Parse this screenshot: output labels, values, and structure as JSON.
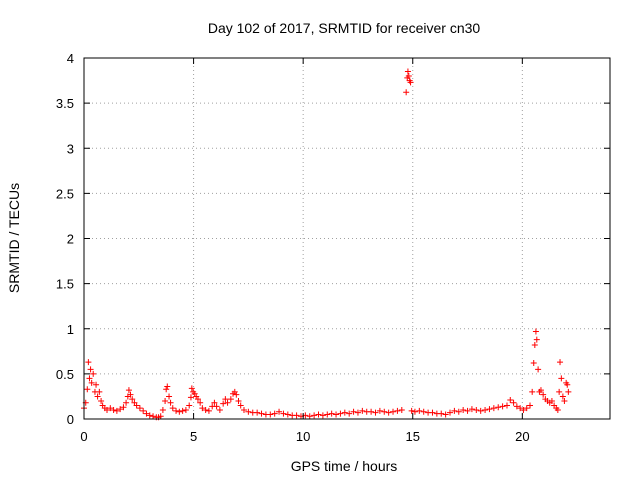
{
  "chart_data": {
    "type": "scatter",
    "title": "Day 102 of 2017, SRMTID for receiver cn30",
    "xlabel": "GPS time / hours",
    "ylabel": "SRMTID / TECUs",
    "xlim": [
      0,
      24
    ],
    "ylim": [
      0,
      4
    ],
    "xticks": [
      0,
      5,
      10,
      15,
      20
    ],
    "yticks": [
      0,
      0.5,
      1,
      1.5,
      2,
      2.5,
      3,
      3.5,
      4
    ],
    "ytick_labels": [
      "0",
      "0.5",
      "1",
      "1.5",
      "2",
      "2.5",
      "3",
      "3.5",
      "4"
    ],
    "grid": true,
    "marker": "+",
    "color": "#ff0000",
    "series": [
      {
        "name": "cn30",
        "points": [
          [
            0.0,
            0.12
          ],
          [
            0.08,
            0.18
          ],
          [
            0.15,
            0.33
          ],
          [
            0.2,
            0.63
          ],
          [
            0.25,
            0.45
          ],
          [
            0.3,
            0.55
          ],
          [
            0.35,
            0.4
          ],
          [
            0.42,
            0.5
          ],
          [
            0.5,
            0.3
          ],
          [
            0.55,
            0.38
          ],
          [
            0.62,
            0.25
          ],
          [
            0.7,
            0.3
          ],
          [
            0.78,
            0.2
          ],
          [
            0.85,
            0.15
          ],
          [
            0.95,
            0.12
          ],
          [
            1.05,
            0.1
          ],
          [
            1.2,
            0.12
          ],
          [
            1.35,
            0.1
          ],
          [
            1.5,
            0.09
          ],
          [
            1.65,
            0.11
          ],
          [
            1.8,
            0.13
          ],
          [
            1.92,
            0.18
          ],
          [
            2.0,
            0.25
          ],
          [
            2.05,
            0.32
          ],
          [
            2.12,
            0.27
          ],
          [
            2.2,
            0.22
          ],
          [
            2.3,
            0.18
          ],
          [
            2.4,
            0.15
          ],
          [
            2.55,
            0.12
          ],
          [
            2.7,
            0.09
          ],
          [
            2.85,
            0.06
          ],
          [
            3.0,
            0.04
          ],
          [
            3.15,
            0.03
          ],
          [
            3.3,
            0.02
          ],
          [
            3.4,
            0.02
          ],
          [
            3.5,
            0.03
          ],
          [
            3.6,
            0.1
          ],
          [
            3.7,
            0.2
          ],
          [
            3.75,
            0.33
          ],
          [
            3.8,
            0.36
          ],
          [
            3.88,
            0.25
          ],
          [
            3.95,
            0.18
          ],
          [
            4.05,
            0.12
          ],
          [
            4.2,
            0.09
          ],
          [
            4.35,
            0.08
          ],
          [
            4.5,
            0.09
          ],
          [
            4.65,
            0.1
          ],
          [
            4.8,
            0.15
          ],
          [
            4.88,
            0.24
          ],
          [
            4.92,
            0.34
          ],
          [
            4.98,
            0.3
          ],
          [
            5.05,
            0.28
          ],
          [
            5.12,
            0.25
          ],
          [
            5.2,
            0.22
          ],
          [
            5.3,
            0.18
          ],
          [
            5.4,
            0.12
          ],
          [
            5.55,
            0.1
          ],
          [
            5.7,
            0.09
          ],
          [
            5.85,
            0.14
          ],
          [
            5.95,
            0.18
          ],
          [
            6.05,
            0.14
          ],
          [
            6.2,
            0.1
          ],
          [
            6.35,
            0.17
          ],
          [
            6.45,
            0.22
          ],
          [
            6.55,
            0.18
          ],
          [
            6.7,
            0.22
          ],
          [
            6.8,
            0.28
          ],
          [
            6.88,
            0.3
          ],
          [
            6.95,
            0.27
          ],
          [
            7.05,
            0.2
          ],
          [
            7.15,
            0.15
          ],
          [
            7.3,
            0.1
          ],
          [
            7.5,
            0.08
          ],
          [
            7.7,
            0.07
          ],
          [
            7.9,
            0.07
          ],
          [
            8.1,
            0.06
          ],
          [
            8.3,
            0.05
          ],
          [
            8.5,
            0.05
          ],
          [
            8.7,
            0.06
          ],
          [
            8.9,
            0.08
          ],
          [
            9.1,
            0.06
          ],
          [
            9.3,
            0.05
          ],
          [
            9.5,
            0.04
          ],
          [
            9.7,
            0.04
          ],
          [
            9.9,
            0.03
          ],
          [
            10.1,
            0.04
          ],
          [
            10.3,
            0.03
          ],
          [
            10.5,
            0.04
          ],
          [
            10.7,
            0.05
          ],
          [
            10.9,
            0.04
          ],
          [
            11.1,
            0.05
          ],
          [
            11.3,
            0.06
          ],
          [
            11.5,
            0.05
          ],
          [
            11.7,
            0.06
          ],
          [
            11.9,
            0.07
          ],
          [
            12.1,
            0.06
          ],
          [
            12.3,
            0.08
          ],
          [
            12.5,
            0.07
          ],
          [
            12.7,
            0.09
          ],
          [
            12.9,
            0.08
          ],
          [
            13.1,
            0.08
          ],
          [
            13.3,
            0.07
          ],
          [
            13.5,
            0.09
          ],
          [
            13.7,
            0.08
          ],
          [
            13.9,
            0.07
          ],
          [
            14.1,
            0.08
          ],
          [
            14.3,
            0.09
          ],
          [
            14.5,
            0.1
          ],
          [
            14.7,
            3.62
          ],
          [
            14.75,
            3.78
          ],
          [
            14.78,
            3.85
          ],
          [
            14.82,
            3.8
          ],
          [
            14.86,
            3.75
          ],
          [
            14.9,
            3.73
          ],
          [
            14.95,
            0.09
          ],
          [
            15.1,
            0.08
          ],
          [
            15.3,
            0.09
          ],
          [
            15.5,
            0.08
          ],
          [
            15.7,
            0.07
          ],
          [
            15.9,
            0.07
          ],
          [
            16.1,
            0.06
          ],
          [
            16.3,
            0.06
          ],
          [
            16.5,
            0.05
          ],
          [
            16.7,
            0.07
          ],
          [
            16.9,
            0.09
          ],
          [
            17.1,
            0.08
          ],
          [
            17.3,
            0.1
          ],
          [
            17.5,
            0.09
          ],
          [
            17.7,
            0.11
          ],
          [
            17.9,
            0.1
          ],
          [
            18.1,
            0.09
          ],
          [
            18.3,
            0.1
          ],
          [
            18.5,
            0.11
          ],
          [
            18.7,
            0.12
          ],
          [
            18.9,
            0.13
          ],
          [
            19.1,
            0.14
          ],
          [
            19.3,
            0.15
          ],
          [
            19.45,
            0.21
          ],
          [
            19.6,
            0.18
          ],
          [
            19.75,
            0.14
          ],
          [
            19.9,
            0.12
          ],
          [
            20.05,
            0.1
          ],
          [
            20.2,
            0.12
          ],
          [
            20.35,
            0.15
          ],
          [
            20.45,
            0.3
          ],
          [
            20.52,
            0.62
          ],
          [
            20.57,
            0.82
          ],
          [
            20.62,
            0.97
          ],
          [
            20.66,
            0.88
          ],
          [
            20.72,
            0.55
          ],
          [
            20.78,
            0.3
          ],
          [
            20.85,
            0.32
          ],
          [
            20.95,
            0.27
          ],
          [
            21.05,
            0.22
          ],
          [
            21.15,
            0.2
          ],
          [
            21.25,
            0.18
          ],
          [
            21.35,
            0.2
          ],
          [
            21.45,
            0.15
          ],
          [
            21.55,
            0.12
          ],
          [
            21.62,
            0.1
          ],
          [
            21.68,
            0.3
          ],
          [
            21.72,
            0.63
          ],
          [
            21.78,
            0.45
          ],
          [
            21.85,
            0.25
          ],
          [
            21.92,
            0.2
          ],
          [
            22.0,
            0.4
          ],
          [
            22.05,
            0.38
          ],
          [
            22.1,
            0.3
          ]
        ]
      }
    ]
  }
}
